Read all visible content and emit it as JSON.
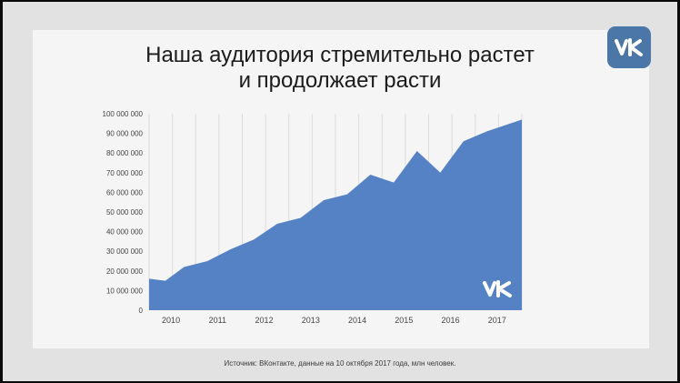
{
  "slide": {
    "title_line1": "Наша аудитория стремительно растет",
    "title_line2": "и продолжает расти",
    "source": "Источник: ВКонтакте, данные на 10 октября 2017 года, млн человек.",
    "logo_icon": "vk-logo-icon",
    "accent_color": "#4a76a8"
  },
  "chart_data": {
    "type": "area",
    "title": "",
    "xlabel": "",
    "ylabel": "",
    "x": [
      2009.55,
      2009.9,
      2010.3,
      2010.8,
      2011.3,
      2011.8,
      2012.3,
      2012.8,
      2013.3,
      2013.8,
      2014.3,
      2014.8,
      2015.3,
      2015.8,
      2016.3,
      2016.8,
      2017.3,
      2017.55
    ],
    "values": [
      16000000,
      15000000,
      22000000,
      25000000,
      31000000,
      36000000,
      44000000,
      47000000,
      56000000,
      59000000,
      69000000,
      65000000,
      81000000,
      70000000,
      86000000,
      91000000,
      95000000,
      97000000
    ],
    "xlim": [
      2009.55,
      2017.55
    ],
    "ylim": [
      0,
      100000000
    ],
    "x_ticks": [
      2010,
      2011,
      2012,
      2013,
      2014,
      2015,
      2016,
      2017
    ],
    "y_ticks": [
      "0",
      "10 000 000",
      "20 000 000",
      "30 000 000",
      "40 000 000",
      "50 000 000",
      "60 000 000",
      "70 000 000",
      "80 000 000",
      "90 000 000",
      "100 000 000"
    ],
    "grid": "vertical",
    "series_color": "#5582c4",
    "watermark_icon": "vk-logo-icon"
  }
}
